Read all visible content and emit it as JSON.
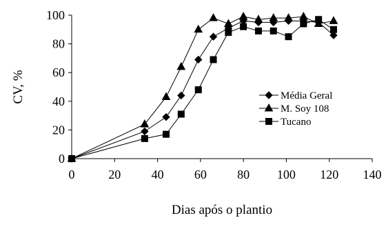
{
  "chart_data": {
    "type": "line",
    "title": "",
    "xlabel": "Dias após o plantio",
    "ylabel": "CV, %",
    "xlim": [
      0,
      140
    ],
    "ylim": [
      0,
      100
    ],
    "x_ticks": [
      "0",
      "20",
      "40",
      "60",
      "80",
      "100",
      "120",
      "140"
    ],
    "y_ticks": [
      "0",
      "20",
      "40",
      "60",
      "80",
      "100"
    ],
    "grid": false,
    "legend_position": "right",
    "series": [
      {
        "name": "Média Geral",
        "marker": "diamond",
        "x": [
          0,
          34,
          44,
          51,
          59,
          66,
          73,
          80,
          87,
          94,
          101,
          108,
          115,
          122
        ],
        "y": [
          0,
          19,
          29,
          44,
          69,
          85,
          91,
          96,
          95,
          95,
          96,
          96,
          95,
          86
        ]
      },
      {
        "name": "M. Soy 108",
        "marker": "triangle",
        "x": [
          0,
          34,
          44,
          51,
          59,
          66,
          73,
          80,
          87,
          94,
          101,
          108,
          115,
          122
        ],
        "y": [
          0,
          24,
          43,
          64,
          90,
          98,
          94,
          99,
          97,
          98,
          98,
          99,
          94,
          96
        ]
      },
      {
        "name": "Tucano",
        "marker": "square",
        "x": [
          0,
          34,
          44,
          51,
          59,
          66,
          73,
          80,
          87,
          94,
          101,
          108,
          115,
          122
        ],
        "y": [
          0,
          14,
          17,
          31,
          48,
          69,
          88,
          92,
          89,
          89,
          85,
          94,
          97,
          90
        ]
      }
    ]
  }
}
